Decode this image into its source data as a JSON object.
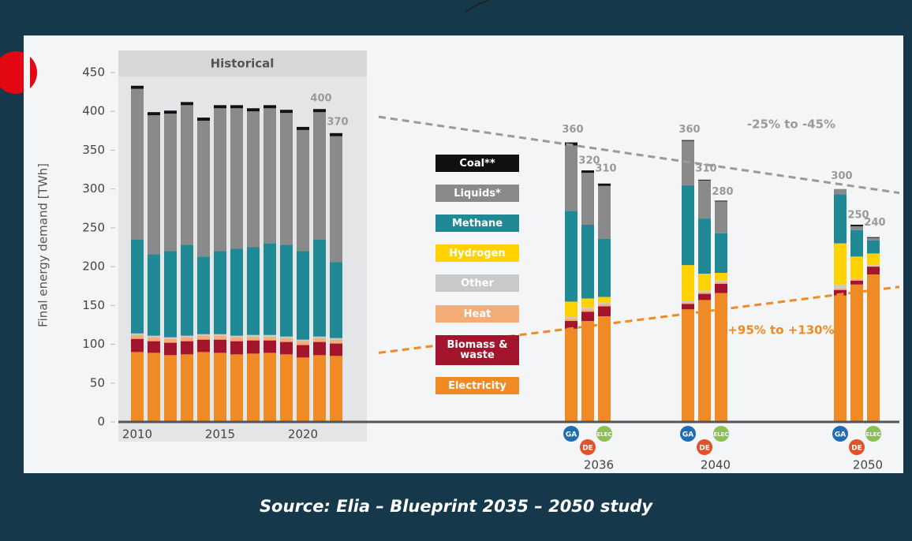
{
  "chart_data": {
    "type": "stacked_bar",
    "y_axis_label": "Final energy demand [TWh]",
    "panel_label": "Historical",
    "ylim": [
      0,
      450
    ],
    "yticks": [
      0,
      50,
      100,
      150,
      200,
      250,
      300,
      350,
      400,
      450
    ],
    "categories": [
      "2010",
      null,
      null,
      null,
      null,
      "2015",
      null,
      null,
      null,
      null,
      "2020",
      null,
      null,
      null,
      null,
      null,
      null,
      null,
      null,
      null,
      null,
      null
    ],
    "groups": [
      "2036",
      "2040",
      "2050"
    ],
    "scenarios": [
      "GA",
      "DE",
      "ELEC"
    ],
    "scenario_colors": [
      "#1e6db3",
      "#e2522a",
      "#8cc152"
    ],
    "totals": [
      null,
      null,
      null,
      null,
      null,
      null,
      null,
      null,
      null,
      null,
      null,
      400,
      370,
      360,
      320,
      310,
      360,
      310,
      280,
      300,
      250,
      240
    ],
    "series": [
      {
        "name": "Electricity",
        "color": "#f08a24",
        "values": [
          90,
          89,
          86,
          87,
          90,
          89,
          87,
          88,
          89,
          87,
          83,
          86,
          85,
          120,
          130,
          136,
          145,
          157,
          166,
          163,
          177,
          190
        ]
      },
      {
        "name": "Biomass & waste",
        "color": "#a3152d",
        "values": [
          17,
          15,
          16,
          17,
          16,
          17,
          17,
          17,
          16,
          16,
          16,
          17,
          16,
          10,
          12,
          13,
          7,
          8,
          12,
          7,
          5,
          10
        ]
      },
      {
        "name": "Heat",
        "color": "#f5ad77",
        "values": [
          5,
          5,
          5,
          5,
          5,
          5,
          5,
          5,
          5,
          5,
          5,
          5,
          5,
          3,
          3,
          3,
          2,
          2,
          2,
          2,
          2,
          1
        ]
      },
      {
        "name": "Other",
        "color": "#c9c9c9",
        "values": [
          2,
          2,
          2,
          2,
          2,
          2,
          2,
          2,
          2,
          2,
          2,
          2,
          2,
          2,
          2,
          2,
          2,
          2,
          2,
          5,
          1,
          1
        ]
      },
      {
        "name": "Hydrogen",
        "color": "#ffd200",
        "values": [
          0,
          0,
          0,
          0,
          0,
          0,
          0,
          0,
          0,
          0,
          0,
          0,
          0,
          20,
          12,
          7,
          46,
          22,
          10,
          53,
          28,
          15
        ]
      },
      {
        "name": "Methane",
        "color": "#1f8996",
        "values": [
          121,
          105,
          111,
          117,
          100,
          107,
          112,
          113,
          118,
          118,
          114,
          125,
          98,
          117,
          95,
          75,
          103,
          71,
          51,
          63,
          34,
          17
        ]
      },
      {
        "name": "Liquids*",
        "color": "#8a8a8a",
        "values": [
          194,
          179,
          177,
          180,
          175,
          184,
          181,
          175,
          174,
          170,
          156,
          164,
          162,
          84,
          67,
          68,
          57,
          49,
          41,
          7,
          5,
          3
        ]
      },
      {
        "name": "Coal**",
        "color": "#111111",
        "values": [
          4,
          4,
          4,
          4,
          4,
          4,
          4,
          4,
          4,
          4,
          4,
          4,
          4,
          4,
          3,
          3,
          1,
          1,
          1,
          0,
          2,
          1
        ]
      }
    ],
    "trends": [
      {
        "label": "-25% to -45%",
        "color": "#9a9a9a",
        "values": [
          393,
          295
        ]
      },
      {
        "label": "+95% to +130%",
        "color": "#f08a24",
        "values": [
          89,
          174
        ]
      }
    ]
  },
  "source": "Source: Elia – Blueprint 2035 – 2050 study"
}
